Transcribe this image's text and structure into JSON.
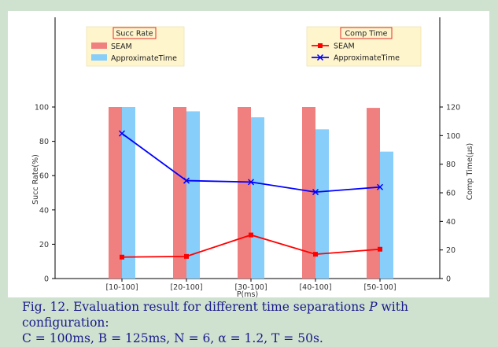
{
  "chart_data": {
    "type": "bar",
    "xlabel": "P(ms)",
    "categories": [
      "[10-100]",
      "[20-100]",
      "[30-100]",
      "[40-100]",
      "[50-100]"
    ],
    "left_axis": {
      "label": "Succ Rate(%)",
      "ylim": [
        0,
        100
      ],
      "ticks": [
        0,
        20,
        40,
        60,
        80,
        100
      ]
    },
    "right_axis": {
      "label": "Comp Time(μs)",
      "ylim": [
        0,
        120
      ],
      "ticks": [
        0,
        20,
        40,
        60,
        80,
        100,
        120
      ]
    },
    "bar_series": [
      {
        "name": "SEAM",
        "color": "#f08080",
        "values": [
          100,
          100,
          100,
          100,
          99.5
        ]
      },
      {
        "name": "ApproximateTime",
        "color": "#87cefa",
        "values": [
          100,
          97.5,
          94,
          87,
          74
        ]
      }
    ],
    "line_series": [
      {
        "name": "SEAM",
        "color": "#ff0000",
        "marker": "square",
        "values": [
          15,
          15.5,
          30.5,
          17,
          20.5
        ]
      },
      {
        "name": "ApproximateTime",
        "color": "#0000ff",
        "marker": "x",
        "values": [
          101.5,
          68.5,
          67.5,
          60.5,
          64
        ]
      }
    ],
    "legends": {
      "bars": {
        "title": "Succ Rate",
        "position": "top-left"
      },
      "lines": {
        "title": "Comp Time",
        "position": "top-right"
      }
    },
    "grid": false
  },
  "caption": {
    "prefix": "Fig. 12.  Evaluation result for different time separations ",
    "var_p": "P",
    "mid": " with configuration:",
    "line2": "C = 100ms, B = 125ms, N = 6, α = 1.2, T = 50s."
  }
}
